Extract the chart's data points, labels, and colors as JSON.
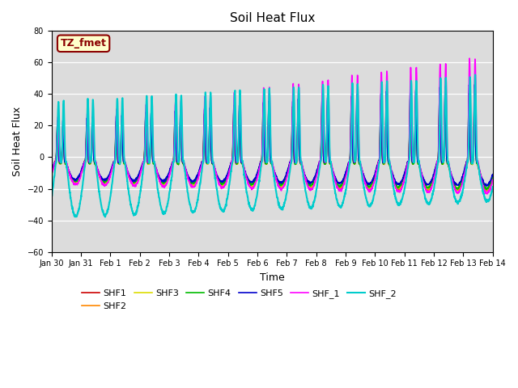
{
  "title": "Soil Heat Flux",
  "xlabel": "Time",
  "ylabel": "Soil Heat Flux",
  "ylim": [
    -60,
    80
  ],
  "background_color": "#dcdcdc",
  "annotation_text": "TZ_fmet",
  "annotation_color": "#8B0000",
  "annotation_bg": "#ffffcc",
  "series_order": [
    "SHF1",
    "SHF2",
    "SHF3",
    "SHF4",
    "SHF5",
    "SHF_1",
    "SHF_2"
  ],
  "series": {
    "SHF1": {
      "color": "#cc0000",
      "lw": 1.2
    },
    "SHF2": {
      "color": "#ff8800",
      "lw": 1.2
    },
    "SHF3": {
      "color": "#dddd00",
      "lw": 1.2
    },
    "SHF4": {
      "color": "#00bb00",
      "lw": 1.2
    },
    "SHF5": {
      "color": "#0000cc",
      "lw": 1.2
    },
    "SHF_1": {
      "color": "#ff00ff",
      "lw": 1.2
    },
    "SHF_2": {
      "color": "#00cccc",
      "lw": 1.5
    }
  },
  "xtick_labels": [
    "Jan 30",
    "Jan 31",
    "Feb 1",
    "Feb 2",
    "Feb 3",
    "Feb 4",
    "Feb 5",
    "Feb 6",
    "Feb 7",
    "Feb 8",
    "Feb 9",
    "Feb 10",
    "Feb 11",
    "Feb 12",
    "Feb 13",
    "Feb 14"
  ],
  "xtick_positions": [
    0,
    1,
    2,
    3,
    4,
    5,
    6,
    7,
    8,
    9,
    10,
    11,
    12,
    13,
    14,
    15
  ]
}
